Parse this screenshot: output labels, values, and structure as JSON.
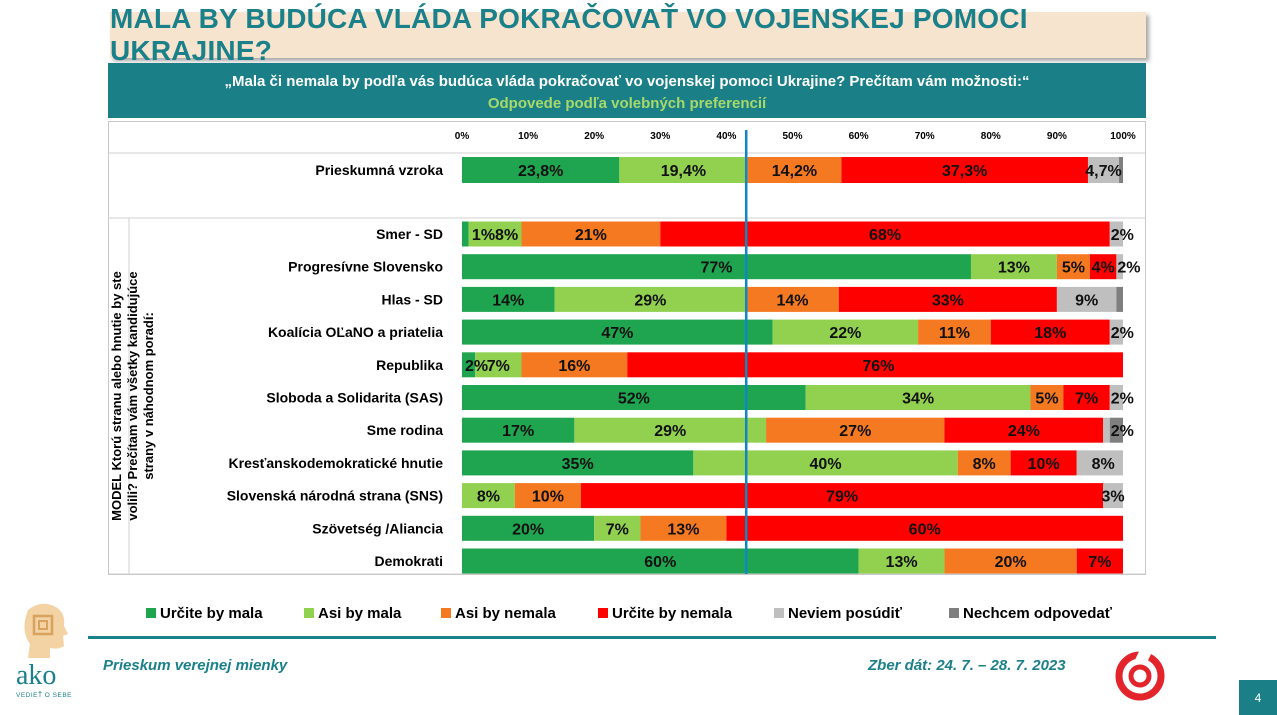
{
  "header": {
    "title": "MALA BY BUDÚCA VLÁDA POKRAČOVAŤ VO VOJENSKEJ POMOCI UKRAJINE?",
    "question": "„Mala či nemala by podľa vás budúca vláda pokračovať vo vojenskej pomoci Ukrajine? Prečítam vám možnosti:“",
    "subtitle": "Odpovede podľa volebných preferencií"
  },
  "chart_data": {
    "type": "bar",
    "orientation": "horizontal",
    "stacked": true,
    "xlim": [
      0,
      100
    ],
    "x_ticks": [
      "0%",
      "10%",
      "20%",
      "30%",
      "40%",
      "50%",
      "60%",
      "70%",
      "80%",
      "90%",
      "100%"
    ],
    "y_axis_label": "MODEL Ktorú stranu alebo hnutie by ste volili? Prečítam vám všetky kandidujúce strany v náhodnom poradí:",
    "total_row": {
      "category": "Prieskumná vzroka",
      "values": [
        23.8,
        19.4,
        14.2,
        37.3,
        4.7,
        0.6
      ],
      "labels": [
        "23,8%",
        "19,4%",
        "14,2%",
        "37,3%",
        "4,7%",
        ""
      ]
    },
    "categories": [
      "Smer - SD",
      "Progresívne Slovensko",
      "Hlas - SD",
      "Koalícia OĽaNO a priatelia",
      "Republika",
      "Sloboda a Solidarita (SAS)",
      "Sme rodina",
      "Kresťanskodemokratické hnutie",
      "Slovenská národná strana (SNS)",
      "Szövetség  /Aliancia",
      "Demokrati"
    ],
    "series": [
      {
        "name": "Určite by mala",
        "color": "#1fa550",
        "values": [
          1,
          77,
          14,
          47,
          2,
          52,
          17,
          35,
          0,
          20,
          60
        ],
        "labels": [
          "",
          "77%",
          "14%",
          "47%",
          "2%",
          "52%",
          "17%",
          "35%",
          "",
          "20%",
          "60%"
        ]
      },
      {
        "name": "Asi by mala",
        "color": "#92d050",
        "values": [
          8,
          13,
          29,
          22,
          7,
          34,
          29,
          40,
          8,
          7,
          13
        ],
        "labels": [
          "1%8%",
          "13%",
          "29%",
          "22%",
          "7%",
          "34%",
          "29%",
          "40%",
          "8%",
          "7%",
          "13%"
        ]
      },
      {
        "name": "Asi by nemala",
        "color": "#f47920",
        "values": [
          21,
          5,
          14,
          11,
          16,
          5,
          27,
          8,
          10,
          13,
          20
        ],
        "labels": [
          "21%",
          "5%",
          "14%",
          "11%",
          "16%",
          "5%",
          "27%",
          "8%",
          "10%",
          "13%",
          "20%"
        ]
      },
      {
        "name": "Určite by nemala",
        "color": "#ff0000",
        "values": [
          68,
          4,
          33,
          18,
          76,
          7,
          24,
          10,
          79,
          60,
          7
        ],
        "labels": [
          "68%",
          "4%",
          "33%",
          "18%",
          "76%",
          "7%",
          "24%",
          "10%",
          "79%",
          "60%",
          "7%"
        ]
      },
      {
        "name": "Neviem posúdiť",
        "color": "#bfbfbf",
        "values": [
          2,
          2,
          9,
          2,
          0,
          2,
          1,
          8,
          3,
          0,
          0
        ],
        "labels": [
          "2%",
          "2%",
          "9%",
          "2%",
          "",
          "2%",
          "",
          "8%",
          "3%",
          "",
          ""
        ]
      },
      {
        "name": "Nechcem odpovedať",
        "color": "#7f7f7f",
        "values": [
          0,
          0,
          1,
          0,
          0,
          0,
          2,
          0,
          0,
          0,
          0
        ],
        "labels": [
          "",
          "",
          "",
          "",
          "",
          "",
          "2%",
          "",
          "",
          "",
          ""
        ]
      }
    ],
    "reference_line": 43,
    "legend_position": "bottom"
  },
  "footer": {
    "left": "Prieskum verejnej mienky",
    "right": "Zber dát: 24. 7. – 28. 7. 2023",
    "logo_text": "ako",
    "logo_tagline": "VEDIEŤ O SEBE",
    "page": "4"
  }
}
